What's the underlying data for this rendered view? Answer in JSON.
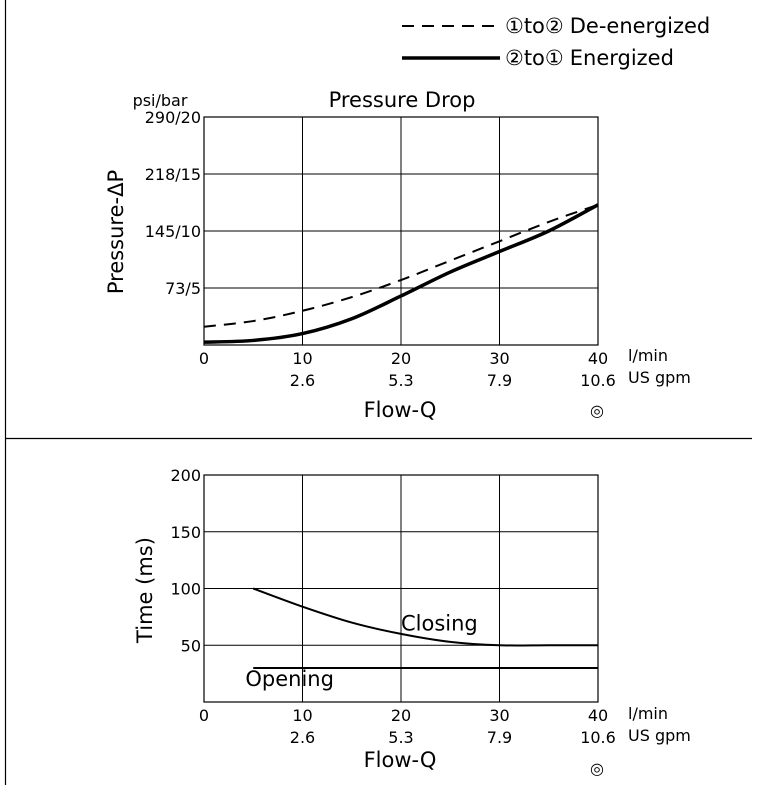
{
  "legend": {
    "items": [
      {
        "symbol": "①to②",
        "label": "De-energized",
        "style": "dashed"
      },
      {
        "symbol": "②to①",
        "label": "Energized",
        "style": "solid"
      }
    ]
  },
  "chart_data": [
    {
      "type": "line",
      "title": "Pressure Drop",
      "ylabel": "Pressure-ΔP",
      "yunit": "psi/bar",
      "xlabel": "Flow-Q",
      "xunit_primary": "l/min",
      "xunit_secondary": "US gpm",
      "xlim": [
        0,
        40
      ],
      "ylim": [
        0,
        20
      ],
      "x_ticks": [
        0,
        10,
        20,
        30,
        40
      ],
      "x_tick_labels": [
        "0",
        "10",
        "20",
        "30",
        "40"
      ],
      "x_tick_labels_secondary": [
        "",
        "2.6",
        "5.3",
        "7.9",
        "10.6"
      ],
      "y_ticks": [
        0,
        5,
        10,
        15,
        20
      ],
      "y_tick_labels": [
        "",
        "73/5",
        "145/10",
        "218/15",
        "290/20"
      ],
      "grid": true,
      "series": [
        {
          "name": "①to② De-energized",
          "style": "dashed",
          "x": [
            0,
            5,
            10,
            15,
            20,
            25,
            30,
            35,
            40
          ],
          "y": [
            1.6,
            2.1,
            3.0,
            4.2,
            5.7,
            7.4,
            9.1,
            10.8,
            12.3
          ]
        },
        {
          "name": "②to① Energized",
          "style": "solid",
          "x": [
            0,
            5,
            10,
            15,
            20,
            25,
            30,
            35,
            40
          ],
          "y": [
            0.25,
            0.4,
            1.0,
            2.3,
            4.3,
            6.4,
            8.2,
            10.0,
            12.3
          ]
        }
      ],
      "footnote_symbol": "◎"
    },
    {
      "type": "line",
      "title": "",
      "ylabel": "Time (ms)",
      "xlabel": "Flow-Q",
      "xunit_primary": "l/min",
      "xunit_secondary": "US gpm",
      "xlim": [
        0,
        40
      ],
      "ylim": [
        0,
        200
      ],
      "x_ticks": [
        0,
        10,
        20,
        30,
        40
      ],
      "x_tick_labels": [
        "0",
        "10",
        "20",
        "30",
        "40"
      ],
      "x_tick_labels_secondary": [
        "",
        "2.6",
        "5.3",
        "7.9",
        "10.6"
      ],
      "y_ticks": [
        0,
        50,
        100,
        150,
        200
      ],
      "y_tick_labels": [
        "",
        "50",
        "100",
        "150",
        "200"
      ],
      "grid": true,
      "series": [
        {
          "name": "Closing",
          "style": "solid",
          "x": [
            5,
            10,
            15,
            20,
            25,
            30,
            35,
            40
          ],
          "y": [
            100,
            84,
            70,
            60,
            53,
            50,
            50,
            50
          ]
        },
        {
          "name": "Opening",
          "style": "solid",
          "x": [
            5,
            10,
            20,
            30,
            40
          ],
          "y": [
            30,
            30,
            30,
            30,
            30
          ]
        }
      ],
      "annotations": [
        {
          "text": "Closing",
          "x": 20,
          "y": 63
        },
        {
          "text": "Opening",
          "x": 4.2,
          "y": 14
        }
      ],
      "footnote_symbol": "◎"
    }
  ]
}
